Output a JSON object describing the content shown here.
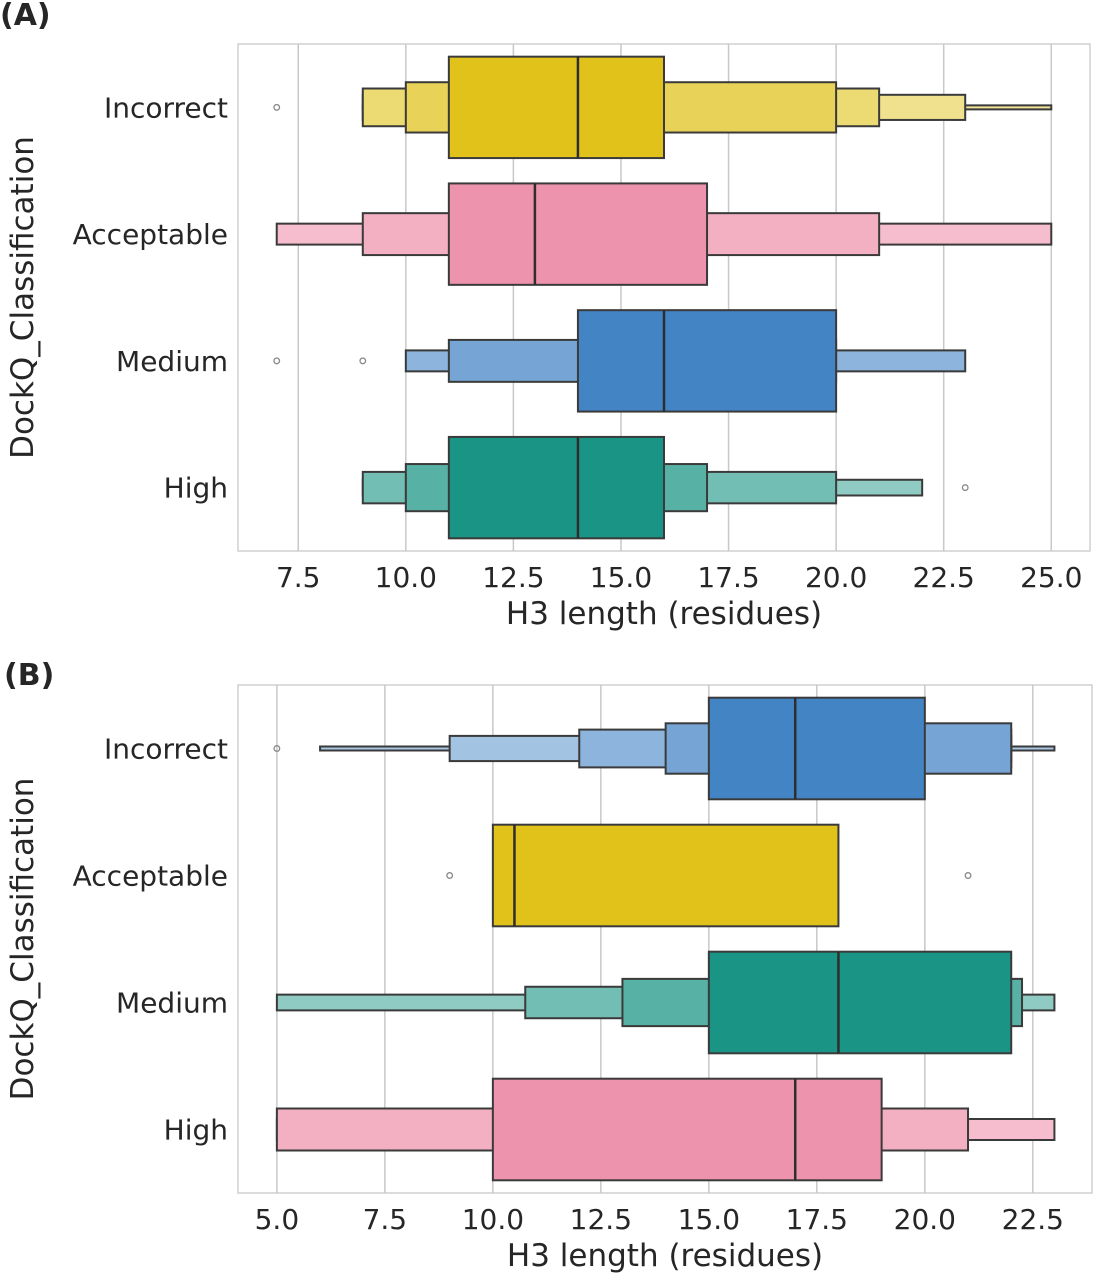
{
  "figure": {
    "panels": [
      {
        "label": "(A)"
      },
      {
        "label": "(B)"
      }
    ]
  },
  "chart_data": [
    {
      "type": "boxen",
      "panel": "(A)",
      "title": "",
      "xlabel": "H3 length (residues)",
      "ylabel": "DockQ_Classification",
      "xlim": [
        6.1,
        25.9
      ],
      "xticks": [
        7.5,
        10.0,
        12.5,
        15.0,
        17.5,
        20.0,
        22.5,
        25.0
      ],
      "xtick_labels": [
        "7.5",
        "10.0",
        "12.5",
        "15.0",
        "17.5",
        "20.0",
        "22.5",
        "25.0"
      ],
      "grid": "vertical",
      "categories": [
        "Incorrect",
        "Acceptable",
        "Medium",
        "High"
      ],
      "series": [
        {
          "name": "Incorrect",
          "color": "#e0c21a",
          "median": 14,
          "levels": [
            [
              11,
              16
            ],
            [
              10,
              20
            ],
            [
              9,
              21
            ],
            [
              9,
              23
            ],
            [
              9,
              25
            ]
          ],
          "outliers": [
            7
          ]
        },
        {
          "name": "Acceptable",
          "color": "#ee93ad",
          "median": 13,
          "levels": [
            [
              11,
              17
            ],
            [
              9,
              21
            ],
            [
              7,
              25
            ]
          ],
          "outliers": []
        },
        {
          "name": "Medium",
          "color": "#4384c5",
          "median": 16,
          "levels": [
            [
              14,
              20
            ],
            [
              11,
              20
            ],
            [
              10,
              23
            ]
          ],
          "outliers": [
            7,
            9
          ]
        },
        {
          "name": "High",
          "color": "#1a9484",
          "median": 14,
          "levels": [
            [
              11,
              16
            ],
            [
              10,
              17
            ],
            [
              9,
              20
            ],
            [
              9,
              22
            ]
          ],
          "outliers": [
            23
          ]
        }
      ]
    },
    {
      "type": "boxen",
      "panel": "(B)",
      "title": "",
      "xlabel": "H3 length (residues)",
      "ylabel": "DockQ_Classification",
      "xlim": [
        4.1,
        23.87
      ],
      "xticks": [
        5.0,
        7.5,
        10.0,
        12.5,
        15.0,
        17.5,
        20.0,
        22.5
      ],
      "xtick_labels": [
        "5.0",
        "7.5",
        "10.0",
        "12.5",
        "15.0",
        "17.5",
        "20.0",
        "22.5"
      ],
      "grid": "vertical",
      "categories": [
        "Incorrect",
        "Acceptable",
        "Medium",
        "High"
      ],
      "series": [
        {
          "name": "Incorrect",
          "color": "#4384c5",
          "median": 17,
          "levels": [
            [
              15,
              20
            ],
            [
              14,
              22
            ],
            [
              12,
              22
            ],
            [
              9,
              22
            ],
            [
              6,
              23
            ]
          ],
          "outliers": [
            5
          ]
        },
        {
          "name": "Acceptable",
          "color": "#e0c21a",
          "median": 10.5,
          "levels": [
            [
              10,
              18
            ]
          ],
          "outliers": [
            9,
            21
          ]
        },
        {
          "name": "Medium",
          "color": "#1a9484",
          "median": 18,
          "levels": [
            [
              15,
              22
            ],
            [
              13,
              22.25
            ],
            [
              10.75,
              22.25
            ],
            [
              5,
              23
            ]
          ],
          "outliers": []
        },
        {
          "name": "High",
          "color": "#ee93ad",
          "median": 17,
          "levels": [
            [
              10,
              19
            ],
            [
              5,
              21
            ],
            [
              5,
              23
            ]
          ],
          "outliers": []
        }
      ]
    }
  ]
}
